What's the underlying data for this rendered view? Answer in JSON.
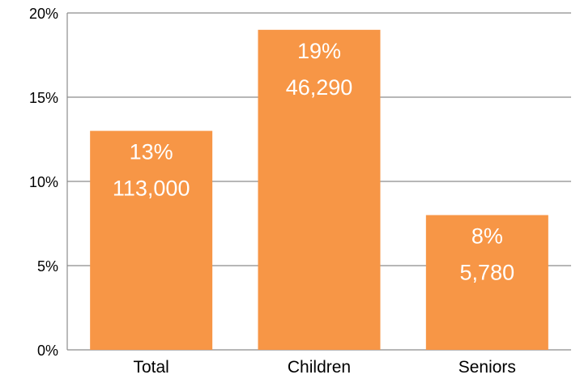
{
  "chart_data": {
    "type": "bar",
    "title": "",
    "xlabel": "",
    "ylabel": "",
    "categories": [
      "Total",
      "Children",
      "Seniors"
    ],
    "values": [
      13,
      19,
      8
    ],
    "value_labels": [
      "13%",
      "19%",
      "8%"
    ],
    "count_labels": [
      "113,000",
      "46,290",
      "5,780"
    ],
    "ylim": [
      0,
      20
    ],
    "yticks": [
      0,
      5,
      10,
      15,
      20
    ],
    "ytick_labels": [
      "0%",
      "5%",
      "10%",
      "15%",
      "20%"
    ],
    "grid": true,
    "legend": "none",
    "bar_color": "#F79646",
    "grid_color": "#8C8C8C"
  }
}
